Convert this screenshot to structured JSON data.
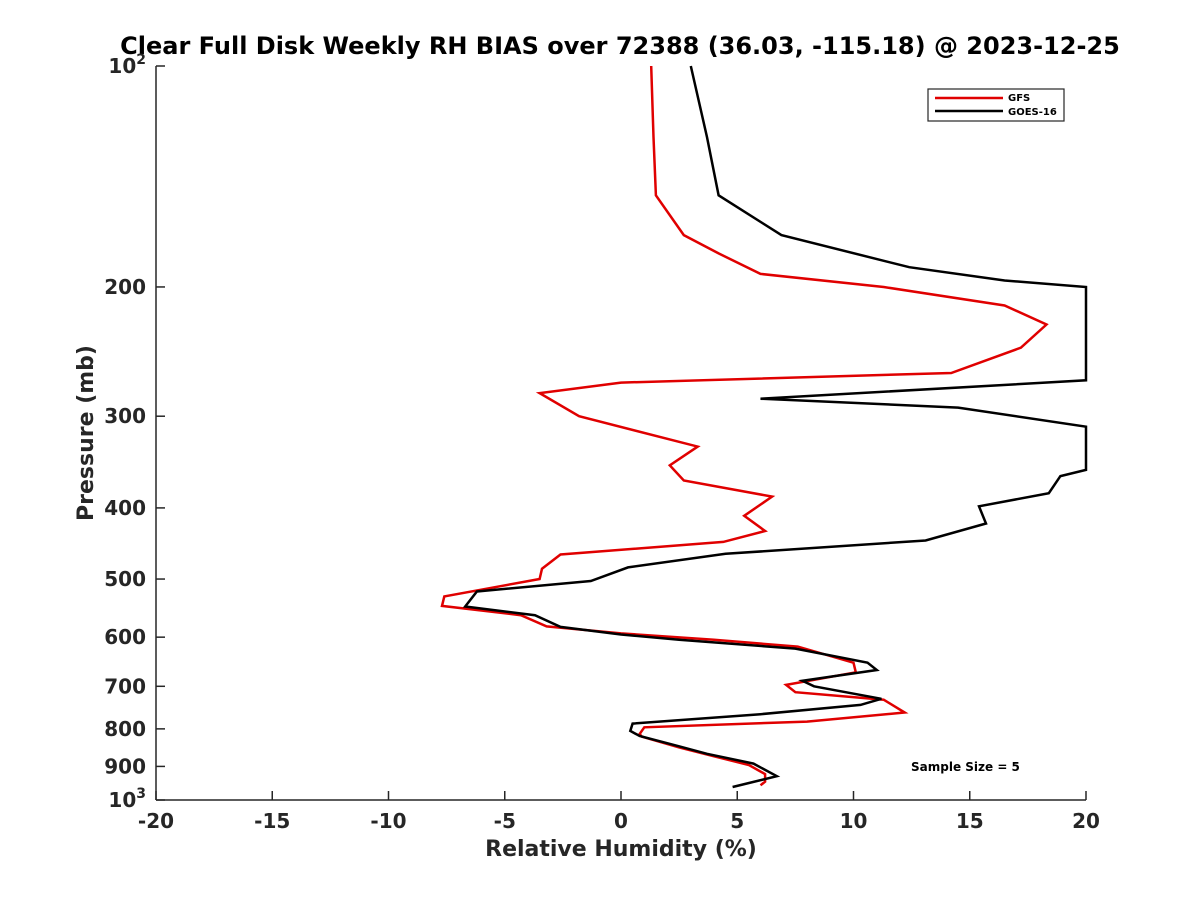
{
  "chart_data": {
    "type": "line",
    "title": "Clear Full Disk Weekly RH BIAS over 72388 (36.03, -115.18) @ 2023-12-25",
    "xlabel": "Relative Humidity (%)",
    "ylabel": "Pressure (mb)",
    "xlim": [
      -20,
      20
    ],
    "ylim": [
      100,
      1000
    ],
    "y_scale": "log",
    "y_reversed": true,
    "grid": false,
    "legend_position": "top-right",
    "xticks": [
      "-20",
      "-15",
      "-10",
      "-5",
      "0",
      "5",
      "10",
      "15",
      "20"
    ],
    "yticks": [
      {
        "value": 100,
        "label": "10",
        "sup": "2"
      },
      {
        "value": 200,
        "label": "200",
        "sup": ""
      },
      {
        "value": 300,
        "label": "300",
        "sup": ""
      },
      {
        "value": 400,
        "label": "400",
        "sup": ""
      },
      {
        "value": 500,
        "label": "500",
        "sup": ""
      },
      {
        "value": 600,
        "label": "600",
        "sup": ""
      },
      {
        "value": 700,
        "label": "700",
        "sup": ""
      },
      {
        "value": 800,
        "label": "800",
        "sup": ""
      },
      {
        "value": 900,
        "label": "900",
        "sup": ""
      },
      {
        "value": 1000,
        "label": "10",
        "sup": "3"
      }
    ],
    "annotation": "Sample Size = 5",
    "series": [
      {
        "name": "GFS",
        "color": "#e00000",
        "points": [
          [
            1.3,
            100
          ],
          [
            1.4,
            125
          ],
          [
            1.5,
            150
          ],
          [
            2.7,
            170
          ],
          [
            4.2,
            180
          ],
          [
            6.0,
            192
          ],
          [
            11.3,
            200
          ],
          [
            16.5,
            212
          ],
          [
            18.3,
            225
          ],
          [
            17.2,
            242
          ],
          [
            14.2,
            262
          ],
          [
            0.0,
            270
          ],
          [
            -3.5,
            279
          ],
          [
            -1.8,
            300
          ],
          [
            3.3,
            330
          ],
          [
            2.1,
            350
          ],
          [
            2.7,
            367
          ],
          [
            6.5,
            386
          ],
          [
            5.3,
            410
          ],
          [
            6.2,
            430
          ],
          [
            4.4,
            445
          ],
          [
            -2.6,
            463
          ],
          [
            -3.4,
            484
          ],
          [
            -3.5,
            500
          ],
          [
            -7.6,
            528
          ],
          [
            -7.7,
            544
          ],
          [
            -4.3,
            560
          ],
          [
            -3.2,
            580
          ],
          [
            0.0,
            593
          ],
          [
            4.0,
            605
          ],
          [
            7.6,
            618
          ],
          [
            10.0,
            650
          ],
          [
            10.1,
            670
          ],
          [
            7.1,
            697
          ],
          [
            7.5,
            713
          ],
          [
            11.3,
            730
          ],
          [
            12.2,
            760
          ],
          [
            8.0,
            782
          ],
          [
            1.0,
            796
          ],
          [
            0.8,
            813
          ],
          [
            0.9,
            820
          ],
          [
            2.5,
            848
          ],
          [
            4.0,
            872
          ],
          [
            5.5,
            896
          ],
          [
            6.2,
            922
          ],
          [
            6.2,
            944
          ],
          [
            6.0,
            955
          ]
        ]
      },
      {
        "name": "GOES-16",
        "color": "#000000",
        "points": [
          [
            3.0,
            100
          ],
          [
            3.7,
            125
          ],
          [
            4.2,
            150
          ],
          [
            6.9,
            170
          ],
          [
            12.4,
            188
          ],
          [
            16.5,
            196
          ],
          [
            20.0,
            200
          ],
          [
            20.0,
            268
          ],
          [
            6.0,
            284
          ],
          [
            14.5,
            292
          ],
          [
            20.0,
            310
          ],
          [
            20.0,
            355
          ],
          [
            18.9,
            362
          ],
          [
            18.4,
            382
          ],
          [
            15.4,
            398
          ],
          [
            15.7,
            420
          ],
          [
            13.1,
            443
          ],
          [
            4.5,
            462
          ],
          [
            0.3,
            482
          ],
          [
            -1.3,
            503
          ],
          [
            -6.2,
            520
          ],
          [
            -6.7,
            545
          ],
          [
            -3.7,
            560
          ],
          [
            -2.6,
            581
          ],
          [
            0.0,
            595
          ],
          [
            2.5,
            605
          ],
          [
            7.5,
            622
          ],
          [
            10.6,
            650
          ],
          [
            11.0,
            665
          ],
          [
            7.8,
            688
          ],
          [
            8.3,
            700
          ],
          [
            11.2,
            728
          ],
          [
            10.3,
            742
          ],
          [
            6.0,
            764
          ],
          [
            0.5,
            787
          ],
          [
            0.4,
            805
          ],
          [
            0.8,
            818
          ],
          [
            2.5,
            845
          ],
          [
            3.7,
            865
          ],
          [
            5.7,
            892
          ],
          [
            6.7,
            928
          ],
          [
            4.8,
            960
          ]
        ]
      }
    ]
  }
}
